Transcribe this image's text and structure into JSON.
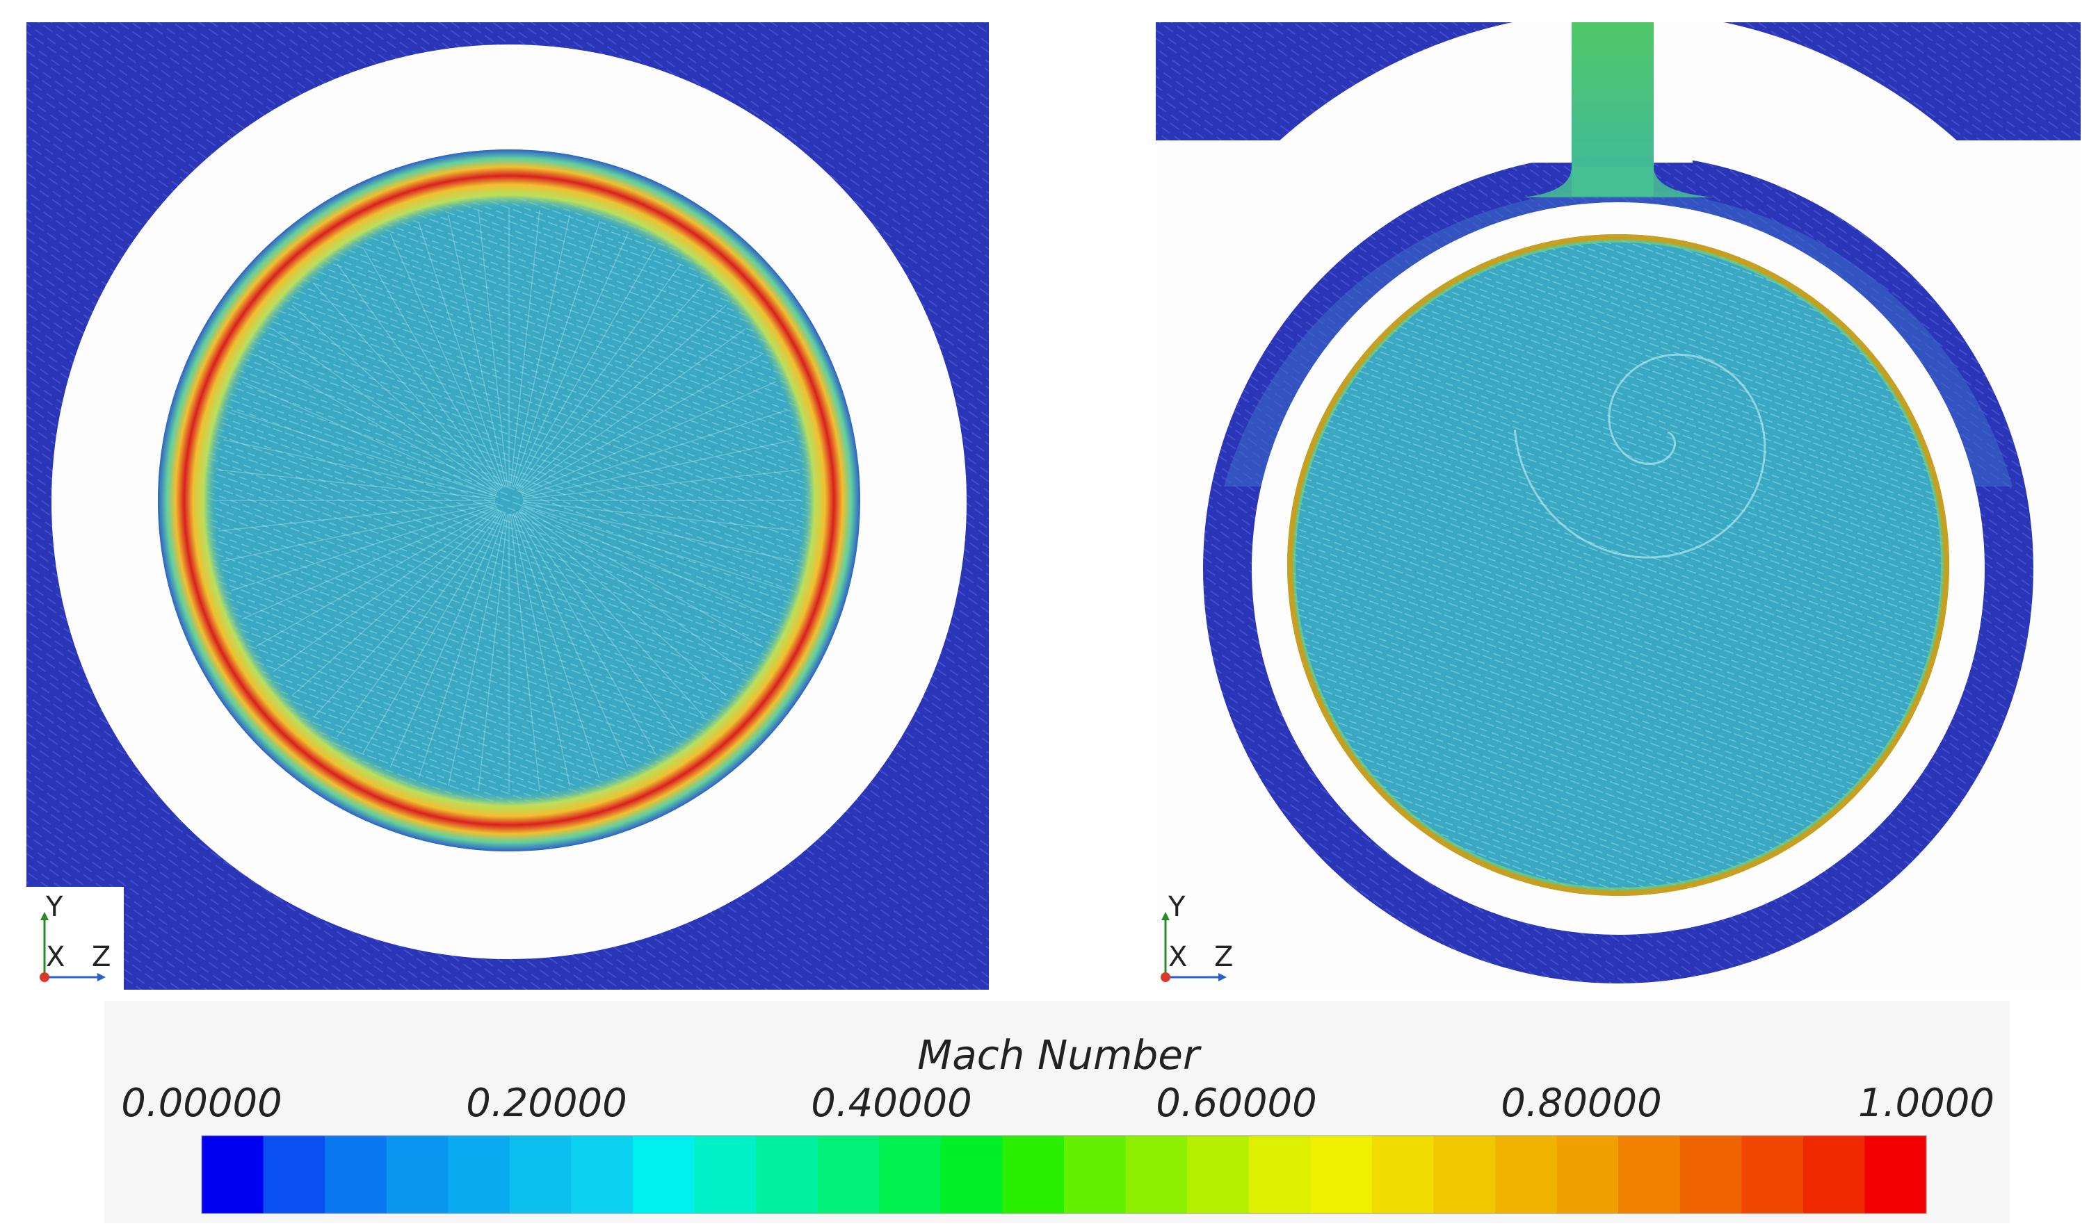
{
  "colorbar": {
    "title": "Mach Number",
    "tick_labels": [
      "0.00000",
      "0.20000",
      "0.40000",
      "0.60000",
      "0.80000",
      "1.0000"
    ],
    "range": [
      0,
      1
    ],
    "colors": [
      "#0000f0",
      "#0a50f0",
      "#0a78f0",
      "#0a96f0",
      "#0aaaf0",
      "#0abef0",
      "#0ad2f0",
      "#00f0f0",
      "#00f0c8",
      "#00f0a0",
      "#00f078",
      "#00f050",
      "#00f028",
      "#28f000",
      "#64f000",
      "#8cf000",
      "#b4f000",
      "#dcf000",
      "#f0f000",
      "#f0dc00",
      "#f0c800",
      "#f0b400",
      "#f0a000",
      "#f08200",
      "#f06400",
      "#f04600",
      "#f02800",
      "#f00000"
    ]
  },
  "panels": [
    {
      "background_color": "#2b35b8",
      "field_color": "#3db2c8",
      "ring_color": "#d62020",
      "triad": {
        "y": "Y",
        "x": "X",
        "z": "Z"
      }
    },
    {
      "background_color": "#2b35b8",
      "field_color": "#3db2c8",
      "ring_color": "#c8a020",
      "inlet_color": "#4cc86a",
      "triad": {
        "y": "Y",
        "x": "X",
        "z": "Z"
      }
    }
  ]
}
